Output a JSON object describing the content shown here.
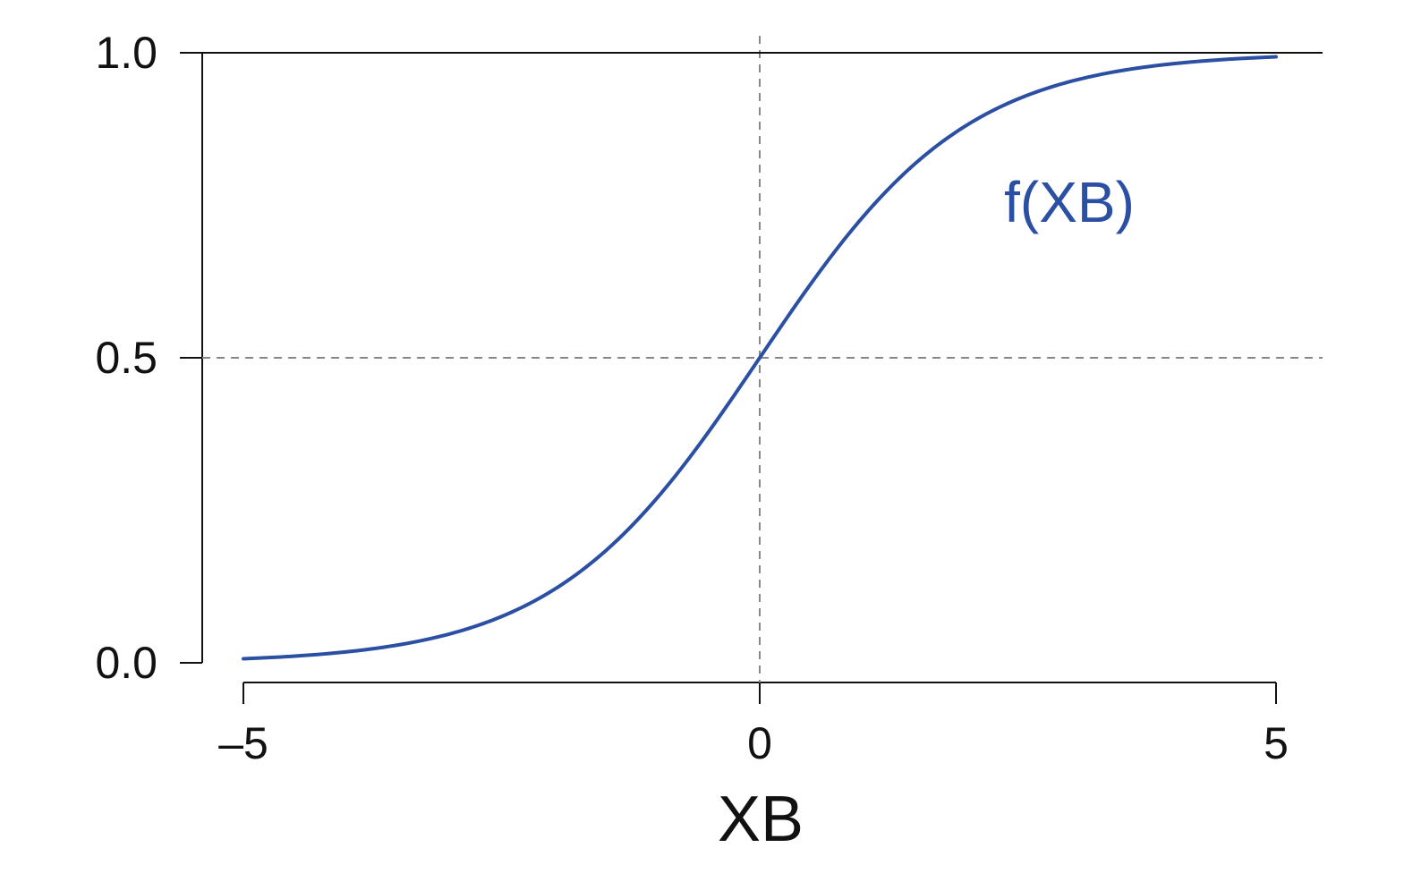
{
  "chart_data": {
    "type": "line",
    "title": "",
    "xlabel": "XB",
    "ylabel": "",
    "xlim": [
      -5,
      5
    ],
    "ylim": [
      0,
      1
    ],
    "x_ticks": [
      -5,
      0,
      5
    ],
    "x_tick_labels": [
      "–5",
      "0",
      "5"
    ],
    "y_ticks": [
      0,
      0.5,
      1
    ],
    "y_tick_labels": [
      "0.0",
      "0.5",
      "1.0"
    ],
    "grid": false,
    "legend": "none",
    "function": "logistic",
    "series": [
      {
        "name": "f(XB)",
        "color": "#2a4fa3",
        "x": [
          -5,
          -4,
          -3,
          -2,
          -1,
          0,
          1,
          2,
          3,
          4,
          5
        ],
        "y": [
          0.0067,
          0.018,
          0.047,
          0.119,
          0.269,
          0.5,
          0.731,
          0.881,
          0.953,
          0.982,
          0.9933
        ]
      }
    ],
    "annotations": [
      {
        "text": "f(XB)",
        "x": 3,
        "y": 0.8,
        "color": "#2a4fa3"
      }
    ],
    "reference_lines": [
      {
        "orientation": "vertical",
        "value": 0,
        "style": "dashed",
        "color": "#888888"
      },
      {
        "orientation": "horizontal",
        "value": 0.5,
        "style": "dashed",
        "color": "#888888"
      },
      {
        "orientation": "horizontal",
        "value": 1.0,
        "style": "solid",
        "color": "#111111"
      }
    ]
  }
}
